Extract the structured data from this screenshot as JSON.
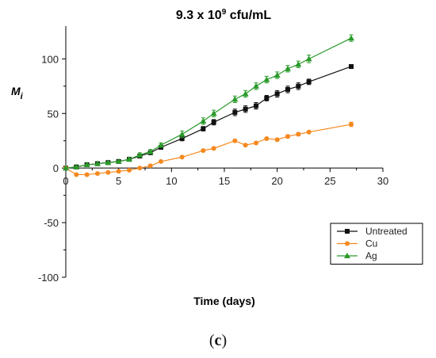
{
  "chart_data": {
    "type": "line",
    "title": {
      "main": "9.3 x 10",
      "sup": "9",
      "rest": " cfu/mL"
    },
    "xlabel": "Time (days)",
    "ylabel": {
      "main": "M",
      "sub": "i"
    },
    "xlim": [
      0,
      30
    ],
    "ylim": [
      -100,
      130
    ],
    "xticks": [
      "0",
      "5",
      "10",
      "15",
      "20",
      "25",
      "30"
    ],
    "yticks": [
      "-100",
      "-50",
      "0",
      "50",
      "100"
    ],
    "legend_position": "bottom-right",
    "grid": false,
    "series": [
      {
        "name": "Untreated",
        "color": "#111111",
        "marker": "square",
        "x": [
          0,
          1,
          2,
          3,
          4,
          5,
          6,
          7,
          8,
          9,
          11,
          13,
          14,
          16,
          17,
          18,
          19,
          20,
          21,
          22,
          23,
          27
        ],
        "y": [
          0,
          1,
          3,
          4,
          5,
          6,
          8,
          11,
          14,
          19,
          27,
          36,
          42,
          51,
          54,
          57,
          64,
          68,
          72,
          75,
          79,
          93
        ],
        "err": [
          0,
          0.5,
          0.5,
          0.5,
          0.5,
          0.5,
          1,
          1.5,
          1.5,
          1.5,
          2,
          2,
          2.5,
          3,
          3,
          3,
          2.5,
          3,
          3,
          3,
          2.5,
          1.5
        ]
      },
      {
        "name": "Cu",
        "color": "#f5891f",
        "marker": "circle",
        "x": [
          0,
          1,
          2,
          3,
          4,
          5,
          6,
          7,
          8,
          9,
          11,
          13,
          14,
          16,
          17,
          18,
          19,
          20,
          21,
          22,
          23,
          27
        ],
        "y": [
          0,
          -6,
          -6,
          -5,
          -4,
          -3,
          -2,
          0,
          2,
          6,
          10,
          16,
          18,
          25,
          21,
          23,
          27,
          26,
          29,
          31,
          33,
          40
        ],
        "err": [
          0,
          0.5,
          0.5,
          0.5,
          0.5,
          0.5,
          0.5,
          0.5,
          0.5,
          0.5,
          0.5,
          1,
          1,
          1,
          1,
          1,
          1,
          1,
          1.5,
          1.5,
          1,
          2
        ]
      },
      {
        "name": "Ag",
        "color": "#2a9a2a",
        "marker": "triangle",
        "x": [
          0,
          1,
          2,
          3,
          4,
          5,
          6,
          7,
          8,
          9,
          11,
          13,
          14,
          16,
          17,
          18,
          19,
          20,
          21,
          22,
          23,
          27
        ],
        "y": [
          0,
          1,
          3,
          4,
          5,
          6,
          8,
          12,
          15,
          21,
          31,
          43,
          50,
          63,
          68,
          75,
          81,
          85,
          91,
          95,
          100,
          119
        ],
        "err": [
          0,
          0.5,
          0.5,
          0.5,
          0.5,
          0.5,
          1,
          2,
          2,
          2,
          3,
          3,
          3,
          3,
          3,
          3,
          3,
          3,
          3,
          3,
          3.5,
          3
        ]
      }
    ]
  },
  "caption": {
    "open": "(",
    "letter": "c",
    "close": ")"
  }
}
